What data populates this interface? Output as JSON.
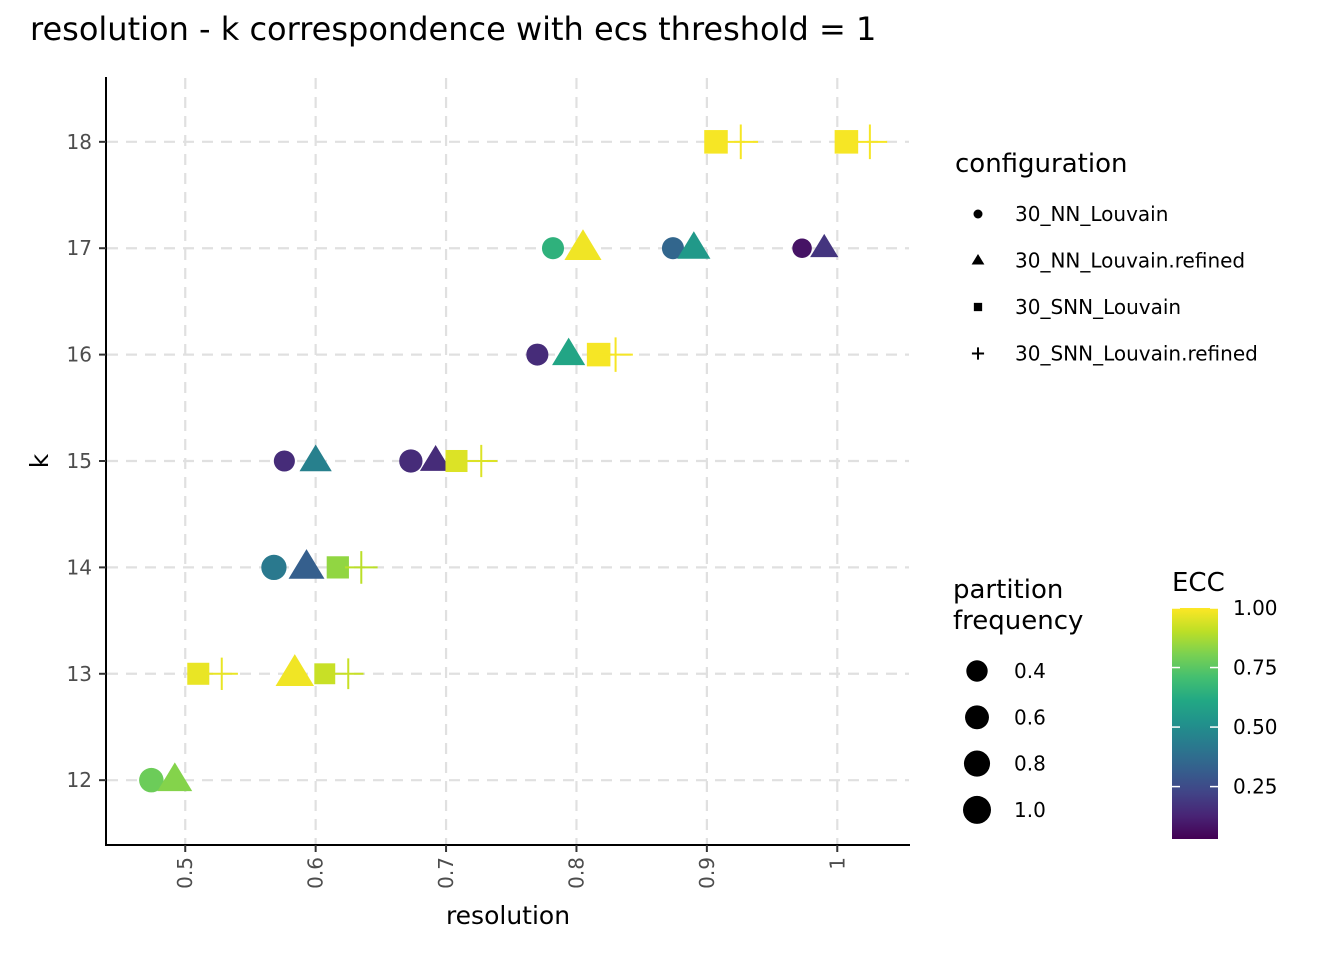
{
  "chart_data": {
    "type": "scatter",
    "title": "resolution - k correspondence with ecs threshold = 1",
    "xlabel": "resolution",
    "ylabel": "k",
    "xlim": [
      0.44,
      1.055
    ],
    "ylim": [
      11.4,
      18.6
    ],
    "xticks": [
      0.5,
      0.6,
      0.7,
      0.8,
      0.9,
      1.0
    ],
    "xtick_labels": [
      "0.5",
      "0.6",
      "0.7",
      "0.8",
      "0.9",
      "1"
    ],
    "yticks": [
      12,
      13,
      14,
      15,
      16,
      17,
      18
    ],
    "ytick_labels": [
      "12",
      "13",
      "14",
      "15",
      "16",
      "17",
      "18"
    ],
    "grid": true,
    "color_scale": "viridis",
    "legends": {
      "configuration": {
        "title": "configuration",
        "entries": [
          {
            "label": "30_NN_Louvain",
            "shape": "circle"
          },
          {
            "label": "30_NN_Louvain.refined",
            "shape": "triangle"
          },
          {
            "label": "30_SNN_Louvain",
            "shape": "square"
          },
          {
            "label": "30_SNN_Louvain.refined",
            "shape": "plus"
          }
        ]
      },
      "size": {
        "title_lines": [
          "partition",
          "frequency"
        ],
        "entries": [
          {
            "label": "0.4",
            "value": 0.4
          },
          {
            "label": "0.6",
            "value": 0.6
          },
          {
            "label": "0.8",
            "value": 0.8
          },
          {
            "label": "1.0",
            "value": 1.0
          }
        ]
      },
      "color": {
        "title": "ECC",
        "ticks": [
          {
            "label": "1.00",
            "value": 1.0
          },
          {
            "label": "0.75",
            "value": 0.75
          },
          {
            "label": "0.50",
            "value": 0.5
          },
          {
            "label": "0.25",
            "value": 0.25
          }
        ],
        "range": [
          0.03,
          1.0
        ]
      }
    },
    "points": [
      {
        "config": "30_NN_Louvain",
        "x": 0.474,
        "y": 12,
        "freq": 0.65,
        "ecc": 0.78
      },
      {
        "config": "30_NN_Louvain.refined",
        "x": 0.492,
        "y": 12,
        "freq": 0.65,
        "ecc": 0.82
      },
      {
        "config": "30_SNN_Louvain",
        "x": 0.51,
        "y": 13,
        "freq": 0.6,
        "ecc": 0.97
      },
      {
        "config": "30_SNN_Louvain.refined",
        "x": 0.528,
        "y": 13,
        "freq": 0.6,
        "ecc": 0.97
      },
      {
        "config": "30_NN_Louvain.refined",
        "x": 0.584,
        "y": 13,
        "freq": 0.9,
        "ecc": 0.98
      },
      {
        "config": "30_SNN_Louvain",
        "x": 0.607,
        "y": 13,
        "freq": 0.5,
        "ecc": 0.92
      },
      {
        "config": "30_SNN_Louvain.refined",
        "x": 0.625,
        "y": 13,
        "freq": 0.5,
        "ecc": 0.92
      },
      {
        "config": "30_NN_Louvain",
        "x": 0.568,
        "y": 14,
        "freq": 0.72,
        "ecc": 0.42
      },
      {
        "config": "30_NN_Louvain.refined",
        "x": 0.593,
        "y": 14,
        "freq": 0.72,
        "ecc": 0.32
      },
      {
        "config": "30_SNN_Louvain",
        "x": 0.617,
        "y": 14,
        "freq": 0.62,
        "ecc": 0.84
      },
      {
        "config": "30_SNN_Louvain.refined",
        "x": 0.635,
        "y": 14,
        "freq": 0.62,
        "ecc": 0.9
      },
      {
        "config": "30_NN_Louvain",
        "x": 0.576,
        "y": 15,
        "freq": 0.38,
        "ecc": 0.15
      },
      {
        "config": "30_NN_Louvain.refined",
        "x": 0.6,
        "y": 15,
        "freq": 0.5,
        "ecc": 0.45
      },
      {
        "config": "30_NN_Louvain",
        "x": 0.673,
        "y": 15,
        "freq": 0.55,
        "ecc": 0.15
      },
      {
        "config": "30_NN_Louvain.refined",
        "x": 0.692,
        "y": 15,
        "freq": 0.45,
        "ecc": 0.15
      },
      {
        "config": "30_SNN_Louvain",
        "x": 0.708,
        "y": 15,
        "freq": 0.6,
        "ecc": 0.95
      },
      {
        "config": "30_SNN_Louvain.refined",
        "x": 0.727,
        "y": 15,
        "freq": 0.6,
        "ecc": 0.95
      },
      {
        "config": "30_NN_Louvain",
        "x": 0.77,
        "y": 16,
        "freq": 0.45,
        "ecc": 0.15
      },
      {
        "config": "30_NN_Louvain.refined",
        "x": 0.794,
        "y": 16,
        "freq": 0.55,
        "ecc": 0.6
      },
      {
        "config": "30_SNN_Louvain",
        "x": 0.817,
        "y": 16,
        "freq": 0.75,
        "ecc": 0.99
      },
      {
        "config": "30_SNN_Louvain.refined",
        "x": 0.83,
        "y": 16,
        "freq": 0.75,
        "ecc": 0.99
      },
      {
        "config": "30_NN_Louvain",
        "x": 0.782,
        "y": 17,
        "freq": 0.45,
        "ecc": 0.65
      },
      {
        "config": "30_NN_Louvain.refined",
        "x": 0.805,
        "y": 17,
        "freq": 0.8,
        "ecc": 0.98
      },
      {
        "config": "30_NN_Louvain",
        "x": 0.874,
        "y": 17,
        "freq": 0.45,
        "ecc": 0.35
      },
      {
        "config": "30_NN_Louvain.refined",
        "x": 0.89,
        "y": 17,
        "freq": 0.55,
        "ecc": 0.55
      },
      {
        "config": "30_NN_Louvain",
        "x": 0.973,
        "y": 17,
        "freq": 0.28,
        "ecc": 0.08
      },
      {
        "config": "30_NN_Louvain.refined",
        "x": 0.99,
        "y": 17,
        "freq": 0.3,
        "ecc": 0.18
      },
      {
        "config": "30_SNN_Louvain",
        "x": 0.907,
        "y": 18,
        "freq": 0.75,
        "ecc": 0.99
      },
      {
        "config": "30_SNN_Louvain.refined",
        "x": 0.926,
        "y": 18,
        "freq": 0.75,
        "ecc": 0.99
      },
      {
        "config": "30_SNN_Louvain",
        "x": 1.007,
        "y": 18,
        "freq": 0.75,
        "ecc": 0.99
      },
      {
        "config": "30_SNN_Louvain.refined",
        "x": 1.025,
        "y": 18,
        "freq": 0.75,
        "ecc": 0.99
      }
    ]
  }
}
